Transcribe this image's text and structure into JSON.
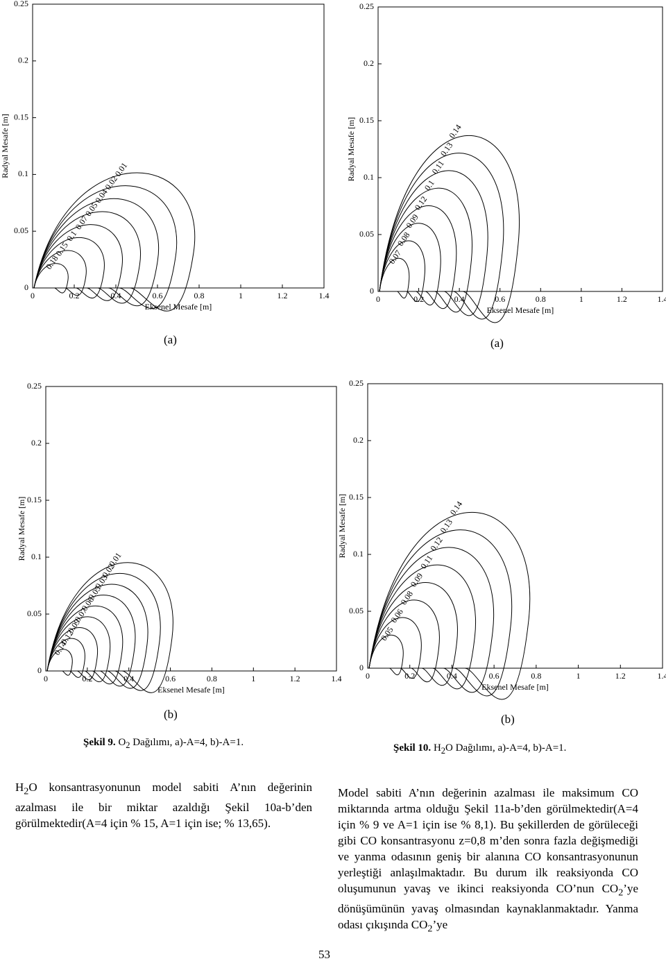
{
  "plots": [
    {
      "xticks": [
        0,
        0.2,
        0.4,
        0.6,
        0.8,
        1,
        1.2,
        1.4
      ],
      "yticks": [
        0,
        0.05,
        0.1,
        0.15,
        0.2,
        0.25
      ],
      "xlabel": "Eksenel Mesafe [m]",
      "ylabel": "Radyal Mesafe [m]",
      "panel": "(a)",
      "contours": [
        0.01,
        0.02,
        0.04,
        0.05,
        0.07,
        0.1,
        0.15,
        0.18
      ]
    },
    {
      "xticks": [
        0,
        0.2,
        0.4,
        0.6,
        0.8,
        1,
        1.2,
        1.4
      ],
      "yticks": [
        0,
        0.05,
        0.1,
        0.15,
        0.2,
        0.25
      ],
      "xlabel": "Eksenel Mesafe [m]",
      "ylabel": "Radyal Mesafe [m]",
      "panel": "(a)",
      "contours": [
        0.14,
        0.13,
        0.11,
        0.1,
        0.12,
        0.09,
        0.08,
        0.07
      ]
    },
    {
      "xticks": [
        0,
        0.2,
        0.4,
        0.6,
        0.8,
        1,
        1.2,
        1.4
      ],
      "yticks": [
        0,
        0.05,
        0.1,
        0.15,
        0.2,
        0.25
      ],
      "xlabel": "Eksenel Mesafe [m]",
      "ylabel": "Radyal Mesafe [m]",
      "panel": "(b)",
      "contours": [
        0.01,
        0.02,
        0.03,
        0.05,
        0.06,
        0.07,
        0.09,
        0.12,
        0.14
      ]
    },
    {
      "xticks": [
        0,
        0.2,
        0.4,
        0.6,
        0.8,
        1,
        1.2,
        1.4
      ],
      "yticks": [
        0,
        0.05,
        0.1,
        0.15,
        0.2,
        0.25
      ],
      "xlabel": "Eksenel Mesafe [m]",
      "ylabel": "Radyal Mesafe [m]",
      "panel": "(b)",
      "contours": [
        0.14,
        0.13,
        0.12,
        0.11,
        0.09,
        0.08,
        0.06,
        0.05
      ]
    }
  ],
  "captions": [
    {
      "label": "Şekil 9.",
      "runs": [
        " O",
        {
          "sub": "2"
        },
        " Dağılımı, a)-A=4, b)-A=1."
      ]
    },
    {
      "label": "Şekil 10.",
      "runs": [
        " H",
        {
          "sub": "2"
        },
        "O Dağılımı, a)-A=4, b)-A=1."
      ]
    }
  ],
  "paragraphs": [
    [
      "H",
      {
        "sub": "2"
      },
      "O konsantrasyonunun model sabiti A’nın değerinin azalması ile bir miktar azaldığı Şekil 10a-b’den görülmektedir(A=4 için % 15, A=1 için ise; % 13,65)."
    ],
    [
      "Model sabiti A’nın değerinin azalması ile maksimum CO miktarında artma olduğu Şekil 11a-b’den görülmektedir(A=4 için % 9 ve A=1 için ise % 8,1). Bu şekillerden de görüleceği gibi CO konsantrasyonu z=0,8 m’den sonra fazla değişmediği ve yanma odasının geniş bir alanına CO konsantrasyonunun yerleştiği anlaşılmaktadır. Bu durum ilk reaksiyonda CO oluşumunun yavaş ve ikinci reaksiyonda CO’nun CO",
      {
        "sub": "2"
      },
      "’ye dönüşümünün yavaş olmasından kaynaklanmaktadır. Yanma odası çıkışında CO",
      {
        "sub": "2"
      },
      "’ye"
    ]
  ],
  "page_number": "53"
}
